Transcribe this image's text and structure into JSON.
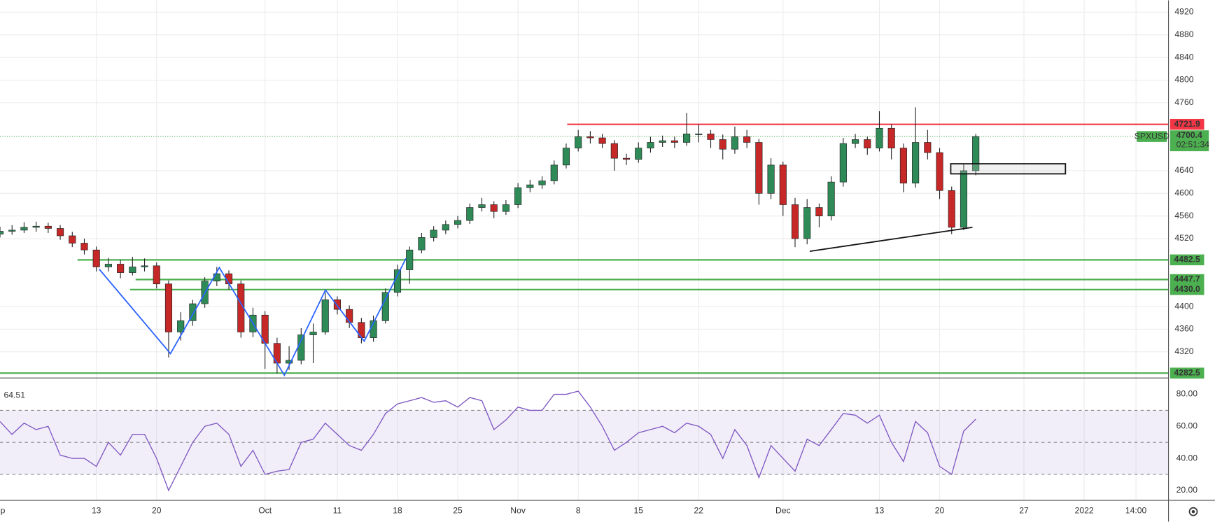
{
  "chart_data": {
    "type": "candlestick",
    "symbol": "SPXUSD",
    "x": [
      -8,
      -7,
      -6,
      -5,
      -4,
      -3,
      -2,
      -1,
      0,
      1,
      2,
      3,
      4,
      5,
      6,
      7,
      8,
      9,
      10,
      11,
      12,
      13,
      14,
      15,
      16,
      17,
      18,
      19,
      20,
      21,
      22,
      23,
      24,
      25,
      26,
      27,
      28,
      29,
      30,
      31,
      32,
      33,
      34,
      35,
      36,
      37,
      38,
      39,
      40,
      41,
      42,
      43,
      44,
      45,
      46,
      47,
      48,
      49,
      50,
      51,
      52,
      53,
      54,
      55,
      56,
      57,
      58,
      59,
      60,
      61,
      62,
      63,
      64,
      65,
      66,
      67,
      68,
      69,
      70,
      71,
      72,
      73
    ],
    "ohlc": [
      [
        4528,
        4541,
        4522,
        4533
      ],
      [
        4533,
        4544,
        4527,
        4535
      ],
      [
        4535,
        4549,
        4530,
        4540
      ],
      [
        4540,
        4550,
        4532,
        4542
      ],
      [
        4542,
        4548,
        4530,
        4538
      ],
      [
        4538,
        4544,
        4518,
        4525
      ],
      [
        4525,
        4532,
        4505,
        4512
      ],
      [
        4512,
        4520,
        4492,
        4500
      ],
      [
        4500,
        4506,
        4462,
        4470
      ],
      [
        4470,
        4486,
        4462,
        4475
      ],
      [
        4475,
        4482,
        4450,
        4460
      ],
      [
        4460,
        4488,
        4455,
        4470
      ],
      [
        4470,
        4485,
        4462,
        4472
      ],
      [
        4472,
        4478,
        4432,
        4440
      ],
      [
        4440,
        4446,
        4310,
        4355
      ],
      [
        4355,
        4390,
        4340,
        4375
      ],
      [
        4375,
        4412,
        4366,
        4405
      ],
      [
        4405,
        4452,
        4398,
        4445
      ],
      [
        4445,
        4470,
        4436,
        4458
      ],
      [
        4458,
        4464,
        4430,
        4440
      ],
      [
        4440,
        4446,
        4345,
        4355
      ],
      [
        4355,
        4398,
        4346,
        4385
      ],
      [
        4385,
        4392,
        4290,
        4335
      ],
      [
        4335,
        4345,
        4282,
        4300
      ],
      [
        4300,
        4330,
        4288,
        4305
      ],
      [
        4305,
        4362,
        4298,
        4350
      ],
      [
        4350,
        4370,
        4300,
        4355
      ],
      [
        4355,
        4425,
        4350,
        4412
      ],
      [
        4412,
        4418,
        4386,
        4395
      ],
      [
        4395,
        4402,
        4362,
        4372
      ],
      [
        4372,
        4380,
        4335,
        4345
      ],
      [
        4345,
        4384,
        4338,
        4375
      ],
      [
        4375,
        4432,
        4370,
        4425
      ],
      [
        4425,
        4474,
        4418,
        4465
      ],
      [
        4465,
        4506,
        4440,
        4500
      ],
      [
        4500,
        4530,
        4494,
        4522
      ],
      [
        4522,
        4542,
        4515,
        4535
      ],
      [
        4535,
        4552,
        4528,
        4545
      ],
      [
        4545,
        4560,
        4538,
        4552
      ],
      [
        4552,
        4582,
        4546,
        4575
      ],
      [
        4575,
        4592,
        4568,
        4580
      ],
      [
        4580,
        4586,
        4556,
        4568
      ],
      [
        4568,
        4588,
        4562,
        4580
      ],
      [
        4580,
        4618,
        4574,
        4610
      ],
      [
        4610,
        4624,
        4602,
        4615
      ],
      [
        4615,
        4630,
        4608,
        4622
      ],
      [
        4622,
        4658,
        4616,
        4650
      ],
      [
        4650,
        4688,
        4644,
        4680
      ],
      [
        4680,
        4712,
        4674,
        4700
      ],
      [
        4700,
        4710,
        4688,
        4698
      ],
      [
        4698,
        4705,
        4680,
        4688
      ],
      [
        4688,
        4694,
        4640,
        4662
      ],
      [
        4662,
        4670,
        4650,
        4660
      ],
      [
        4660,
        4690,
        4654,
        4680
      ],
      [
        4680,
        4700,
        4672,
        4690
      ],
      [
        4690,
        4702,
        4682,
        4693
      ],
      [
        4693,
        4700,
        4680,
        4690
      ],
      [
        4690,
        4742,
        4684,
        4705
      ],
      [
        4705,
        4722,
        4690,
        4705
      ],
      [
        4705,
        4712,
        4680,
        4695
      ],
      [
        4695,
        4704,
        4660,
        4678
      ],
      [
        4678,
        4718,
        4670,
        4700
      ],
      [
        4700,
        4712,
        4680,
        4690
      ],
      [
        4690,
        4696,
        4580,
        4600
      ],
      [
        4600,
        4662,
        4590,
        4650
      ],
      [
        4650,
        4656,
        4560,
        4580
      ],
      [
        4580,
        4592,
        4505,
        4520
      ],
      [
        4520,
        4590,
        4510,
        4575
      ],
      [
        4575,
        4582,
        4540,
        4560
      ],
      [
        4560,
        4630,
        4552,
        4620
      ],
      [
        4620,
        4698,
        4612,
        4688
      ],
      [
        4688,
        4705,
        4680,
        4695
      ],
      [
        4695,
        4700,
        4668,
        4680
      ],
      [
        4680,
        4745,
        4674,
        4715
      ],
      [
        4715,
        4722,
        4660,
        4680
      ],
      [
        4680,
        4688,
        4602,
        4618
      ],
      [
        4618,
        4752,
        4610,
        4690
      ],
      [
        4690,
        4712,
        4660,
        4672
      ],
      [
        4672,
        4680,
        4590,
        4605
      ],
      [
        4605,
        4612,
        4528,
        4540
      ],
      [
        4540,
        4652,
        4535,
        4640
      ],
      [
        4640,
        4705,
        4632,
        4700.4
      ]
    ],
    "up_color": "#2e8b57",
    "down_color": "#c62828",
    "xlim": [
      -8,
      89
    ],
    "ylim": [
      4280,
      4941
    ],
    "yticks": [
      4320,
      4360,
      4400,
      4520,
      4560,
      4600,
      4640,
      4760,
      4800,
      4840,
      4880,
      4920
    ],
    "xticks": [
      {
        "value": -8.2,
        "label": "Sep"
      },
      {
        "value": 0,
        "label": "13"
      },
      {
        "value": 5,
        "label": "20"
      },
      {
        "value": 14,
        "label": "Oct"
      },
      {
        "value": 20,
        "label": "11"
      },
      {
        "value": 25,
        "label": "18"
      },
      {
        "value": 30,
        "label": "25"
      },
      {
        "value": 35,
        "label": "Nov"
      },
      {
        "value": 40,
        "label": "8"
      },
      {
        "value": 45,
        "label": "15"
      },
      {
        "value": 50,
        "label": "22"
      },
      {
        "value": 57,
        "label": "Dec"
      },
      {
        "value": 65,
        "label": "13"
      },
      {
        "value": 70,
        "label": "20"
      },
      {
        "value": 77,
        "label": "27"
      },
      {
        "value": 82,
        "label": "2022"
      },
      {
        "value": 86.3,
        "label": "14:00"
      }
    ],
    "grid": true,
    "levels": [
      4721.9,
      4482.5,
      4447.7,
      {
        "value": 4430,
        "label": "4430.0"
      },
      4282.5
    ],
    "level_colors": [
      "#f23645",
      "#4caf50",
      "#4caf50",
      "#4caf50",
      "#4caf50"
    ],
    "last": {
      "value": 4700.4,
      "countdown": "02:51:34",
      "color": "#4caf50"
    },
    "rsi": {
      "type": "line",
      "color": "#7e57c2",
      "ylim": [
        14,
        89
      ],
      "yticks": [
        {
          "value": 20,
          "label": "20.00"
        },
        {
          "value": 40,
          "label": "40.00"
        },
        {
          "value": 60,
          "label": "60.00"
        },
        {
          "value": 80,
          "label": "80.00"
        }
      ],
      "levels": [
        30,
        50,
        70
      ],
      "values": [
        63,
        55,
        62,
        58,
        60,
        42,
        40,
        40,
        35,
        50,
        42,
        55,
        55,
        40,
        20,
        35,
        50,
        60,
        62,
        55,
        35,
        45,
        30,
        32,
        33,
        50,
        52,
        62,
        55,
        48,
        45,
        55,
        68,
        74,
        76,
        78,
        75,
        76,
        72,
        78,
        76,
        58,
        64,
        72,
        70,
        70,
        80,
        80,
        82,
        72,
        60,
        45,
        50,
        56,
        58,
        60,
        56,
        62,
        60,
        55,
        40,
        58,
        48,
        28,
        48,
        40,
        32,
        52,
        48,
        58,
        68,
        67,
        62,
        67,
        50,
        38,
        63,
        56,
        35,
        30,
        57,
        64.51
      ]
    }
  }
}
